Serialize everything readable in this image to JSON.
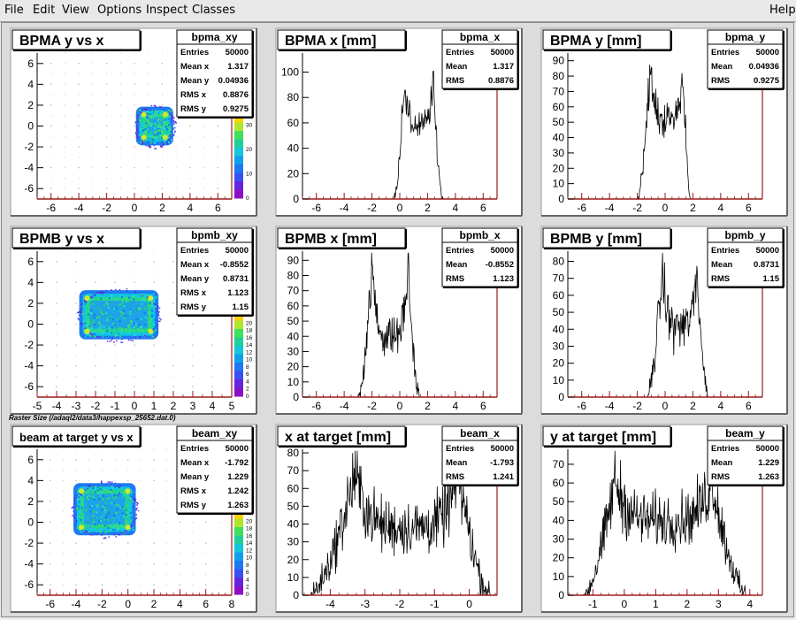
{
  "menu": {
    "items": [
      "File",
      "Edit",
      "View",
      "Options",
      "Inspect",
      "Classes"
    ],
    "help": "Help"
  },
  "canvas_caption": "Raster Size (/adaql2/data3/happexsp_25652.dat.0)",
  "stats_labels": {
    "entries": "Entries",
    "mean": "Mean",
    "mean_x": "Mean x",
    "mean_y": "Mean y",
    "rms": "RMS",
    "rms_x": "RMS x",
    "rms_y": "RMS y"
  },
  "chart_data": [
    {
      "type": "heatmap",
      "title": "BPMA y vs x",
      "stats_name": "bpma_xy",
      "entries": "50000",
      "mean_x": "1.317",
      "mean_y": "0.04936",
      "rms_x": "0.8876",
      "rms_y": "0.9275",
      "xlim": [
        -7,
        7
      ],
      "ylim": [
        -7,
        7
      ],
      "xticks": [
        -6,
        -4,
        -2,
        0,
        2,
        4,
        6
      ],
      "yticks": [
        -6,
        -4,
        -2,
        0,
        2,
        4,
        6
      ],
      "x_range": [
        0.3,
        2.6
      ],
      "y_range": [
        -1.6,
        1.6
      ],
      "palette_ticks": [
        0,
        10,
        20,
        30
      ]
    },
    {
      "type": "line",
      "title": "BPMA x [mm]",
      "stats_name": "bpma_x",
      "entries": "50000",
      "mean": "1.317",
      "rms": "0.8876",
      "xlim": [
        -7,
        7
      ],
      "ylim": [
        0,
        115
      ],
      "xticks": [
        -6,
        -4,
        -2,
        0,
        2,
        4,
        6
      ],
      "yticks": [
        0,
        20,
        40,
        60,
        80,
        100
      ],
      "shape": {
        "left": -0.4,
        "right": 3.1,
        "peak_left": 0.3,
        "peak_right": 2.4,
        "peak": 92,
        "valley": 58,
        "noise": 10
      }
    },
    {
      "type": "line",
      "title": "BPMA y [mm]",
      "stats_name": "bpma_y",
      "entries": "50000",
      "mean": "0.04936",
      "rms": "0.9275",
      "xlim": [
        -7,
        7
      ],
      "ylim": [
        0,
        95
      ],
      "xticks": [
        -6,
        -4,
        -2,
        0,
        2,
        4,
        6
      ],
      "yticks": [
        0,
        10,
        20,
        30,
        40,
        50,
        60,
        70,
        80,
        90
      ],
      "shape": {
        "left": -2.0,
        "right": 1.8,
        "peak_left": -1.1,
        "peak_right": 1.3,
        "peak": 85,
        "valley": 52,
        "noise": 10
      }
    },
    {
      "type": "heatmap",
      "title": "BPMB y vs x",
      "stats_name": "bpmb_xy",
      "entries": "50000",
      "mean_x": "-0.8552",
      "mean_y": "0.8731",
      "rms_x": "1.123",
      "rms_y": "1.15",
      "xlim": [
        -5,
        5
      ],
      "ylim": [
        -7,
        7
      ],
      "xticks": [
        -5,
        -4,
        -3,
        -2,
        -1,
        0,
        1,
        2,
        3,
        4,
        5
      ],
      "yticks": [
        -6,
        -4,
        -2,
        0,
        2,
        4,
        6
      ],
      "x_range": [
        -2.7,
        1.1
      ],
      "y_range": [
        -1.2,
        3.0
      ],
      "palette_ticks": [
        0,
        2,
        4,
        6,
        8,
        10,
        12,
        14,
        16,
        18,
        20
      ]
    },
    {
      "type": "line",
      "title": "BPMB x [mm]",
      "stats_name": "bpmb_x",
      "entries": "50000",
      "mean": "-0.8552",
      "rms": "1.123",
      "xlim": [
        -7,
        7
      ],
      "ylim": [
        0,
        96
      ],
      "xticks": [
        -6,
        -4,
        -2,
        0,
        2,
        4,
        6
      ],
      "yticks": [
        0,
        10,
        20,
        30,
        40,
        50,
        60,
        70,
        80,
        90
      ],
      "shape": {
        "left": -3.0,
        "right": 1.4,
        "peak_left": -2.0,
        "peak_right": 0.6,
        "peak": 85,
        "valley": 40,
        "noise": 12
      }
    },
    {
      "type": "line",
      "title": "BPMB y [mm]",
      "stats_name": "bpmb_y",
      "entries": "50000",
      "mean": "0.8731",
      "rms": "1.15",
      "xlim": [
        -7,
        7
      ],
      "ylim": [
        0,
        86
      ],
      "xticks": [
        -6,
        -4,
        -2,
        0,
        2,
        4,
        6
      ],
      "yticks": [
        0,
        10,
        20,
        30,
        40,
        50,
        60,
        70,
        80
      ],
      "shape": {
        "left": -1.3,
        "right": 3.1,
        "peak_left": -0.2,
        "peak_right": 2.3,
        "peak": 75,
        "valley": 42,
        "noise": 12
      }
    },
    {
      "type": "heatmap",
      "title": "beam at target y vs x",
      "stats_name": "beam_xy",
      "entries": "50000",
      "mean_x": "-1.792",
      "mean_y": "1.229",
      "rms_x": "1.242",
      "rms_y": "1.263",
      "xlim": [
        -7,
        8
      ],
      "ylim": [
        -7,
        7
      ],
      "xticks": [
        -6,
        -4,
        -2,
        0,
        2,
        4,
        6,
        8
      ],
      "yticks": [
        -6,
        -4,
        -2,
        0,
        2,
        4,
        6
      ],
      "x_range": [
        -4.0,
        0.4
      ],
      "y_range": [
        -1.0,
        3.5
      ],
      "palette_ticks": [
        0,
        2,
        4,
        6,
        8,
        10,
        12,
        14,
        16,
        18,
        20
      ]
    },
    {
      "type": "line",
      "title": "x at target [mm]",
      "stats_name": "beam_x",
      "entries": "50000",
      "mean": "-1.793",
      "rms": "1.241",
      "xlim": [
        -4.8,
        0.8
      ],
      "ylim": [
        0,
        82
      ],
      "xticks": [
        -4,
        -3,
        -2,
        -1,
        0
      ],
      "yticks": [
        0,
        10,
        20,
        30,
        40,
        50,
        60,
        70,
        80
      ],
      "shape": {
        "left": -4.6,
        "right": 0.6,
        "peak_left": -3.3,
        "peak_right": -0.3,
        "peak": 68,
        "valley": 38,
        "noise": 14
      }
    },
    {
      "type": "line",
      "title": "y at target [mm]",
      "stats_name": "beam_y",
      "entries": "50000",
      "mean": "1.229",
      "rms": "1.263",
      "xlim": [
        -1.8,
        4.4
      ],
      "ylim": [
        0,
        78
      ],
      "xticks": [
        -1,
        0,
        1,
        2,
        3,
        4
      ],
      "yticks": [
        0,
        10,
        20,
        30,
        40,
        50,
        60,
        70
      ],
      "shape": {
        "left": -1.3,
        "right": 3.9,
        "peak_left": -0.3,
        "peak_right": 2.8,
        "peak": 62,
        "valley": 40,
        "noise": 12
      }
    }
  ]
}
